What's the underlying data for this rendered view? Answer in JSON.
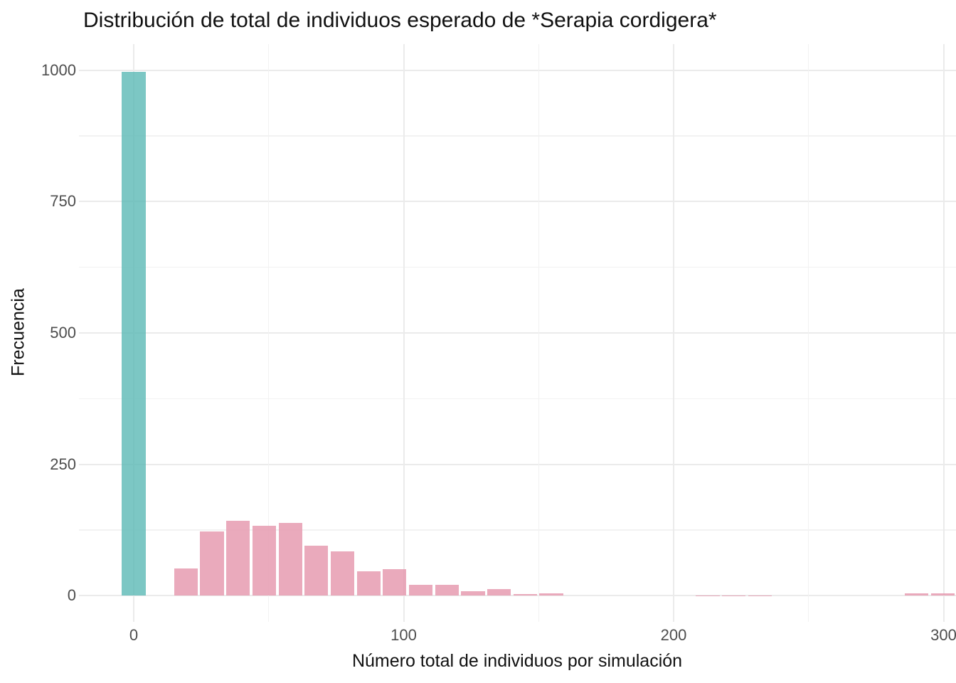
{
  "chart_data": {
    "type": "bar",
    "subtype": "histogram",
    "title": "Distribución de total de individuos esperado de *Serapia cordigera*",
    "xlabel": "Número total de individuos por simulación",
    "ylabel": "Frecuencia",
    "legend": false,
    "grid": "major+minor",
    "background": "#FFFFFF",
    "bin_width": 9.67,
    "bins": {
      "centers": [
        0,
        9.67,
        19.33,
        29,
        38.67,
        48.33,
        58,
        67.67,
        77.33,
        87,
        96.67,
        106.33,
        116,
        125.67,
        135.33,
        145,
        154.67,
        164.33,
        174,
        183.67,
        193.33,
        203,
        212.67,
        222.33,
        232,
        241.67,
        251.33,
        261,
        270.67,
        280.33,
        290,
        299.67
      ],
      "counts": [
        997,
        0,
        52,
        122,
        142,
        133,
        138,
        95,
        84,
        47,
        51,
        21,
        21,
        9,
        13,
        3,
        5,
        0,
        0,
        0,
        0,
        0,
        1,
        1,
        1,
        0,
        0,
        0,
        0,
        0,
        4,
        4
      ],
      "colors": [
        "teal",
        "pink",
        "pink",
        "pink",
        "pink",
        "pink",
        "pink",
        "pink",
        "pink",
        "pink",
        "pink",
        "pink",
        "pink",
        "pink",
        "pink",
        "pink",
        "pink",
        "pink",
        "pink",
        "pink",
        "pink",
        "pink",
        "pink",
        "pink",
        "pink",
        "pink",
        "pink",
        "pink",
        "pink",
        "pink",
        "pink",
        "pink"
      ]
    },
    "palette_hex": {
      "teal": "#7CC7C4",
      "pink": "#EAAABC"
    },
    "palette_rgba": {
      "teal": "rgba(91,185,181,0.8)",
      "pink": "rgba(229,149,171,0.8)"
    },
    "axes": {
      "x_major_ticks": [
        0,
        100,
        200,
        300
      ],
      "x_minor_ticks": [
        50,
        150,
        250
      ],
      "y_major_ticks": [
        0,
        250,
        500,
        750,
        1000
      ],
      "y_minor_ticks": [
        125,
        375,
        625,
        875
      ],
      "xlim": [
        -20,
        304
      ],
      "ylim": [
        -50,
        1050
      ]
    }
  }
}
